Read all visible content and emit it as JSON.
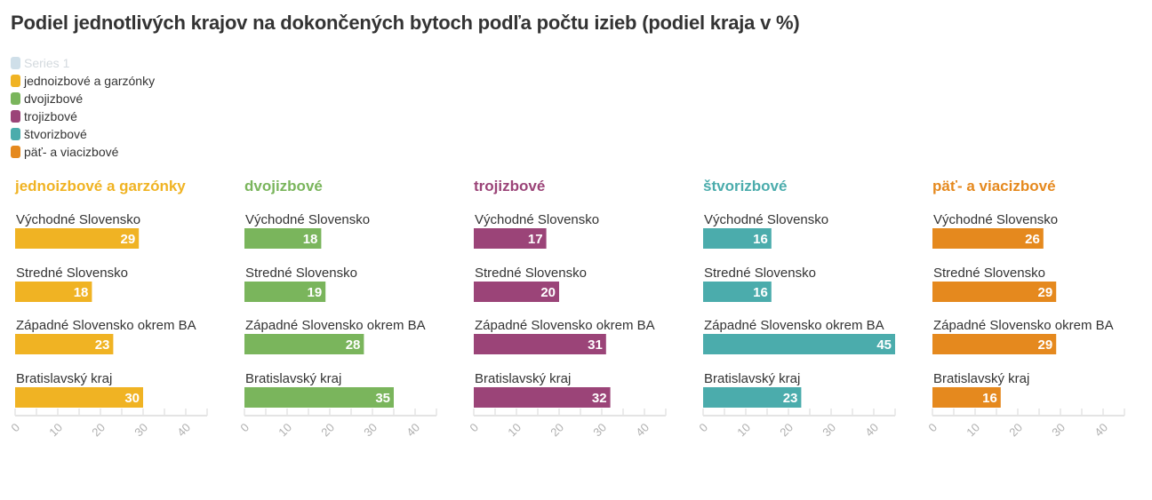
{
  "chart_data": {
    "type": "bar",
    "orientation": "horizontal",
    "title": "Podiel jednotlivých krajov na dokončených bytoch podľa počtu izieb (podiel kraja v %)",
    "legend": [
      {
        "name": "Series 1",
        "color": "#cfdfe9",
        "faded": true
      },
      {
        "name": "jednoizbové a garzónky",
        "color": "#f0b323"
      },
      {
        "name": "dvojizbové",
        "color": "#7ab55c"
      },
      {
        "name": "trojizbové",
        "color": "#9b4478"
      },
      {
        "name": "štvorizbové",
        "color": "#4bacac"
      },
      {
        "name": "päť- a viacizbové",
        "color": "#e5891e"
      }
    ],
    "legend_placement": "top-left",
    "categories": [
      "Východné Slovensko",
      "Stredné Slovensko",
      "Západné Slovensko okrem BA",
      "Bratislavský kraj"
    ],
    "series": [
      {
        "name": "jednoizbové a garzónky",
        "color": "#f0b323",
        "values": [
          29,
          18,
          23,
          30
        ]
      },
      {
        "name": "dvojizbové",
        "color": "#7ab55c",
        "values": [
          18,
          19,
          28,
          35
        ]
      },
      {
        "name": "trojizbové",
        "color": "#9b4478",
        "values": [
          17,
          20,
          31,
          32
        ]
      },
      {
        "name": "štvorizbové",
        "color": "#4bacac",
        "values": [
          16,
          16,
          45,
          23
        ]
      },
      {
        "name": "päť- a viacizbové",
        "color": "#e5891e",
        "values": [
          26,
          29,
          29,
          16
        ]
      }
    ],
    "xlim": [
      0,
      45
    ],
    "xticks": [
      0,
      10,
      20,
      30,
      40
    ],
    "minor_tick_step": 5,
    "xlabel": "",
    "ylabel": "",
    "grid": false
  }
}
